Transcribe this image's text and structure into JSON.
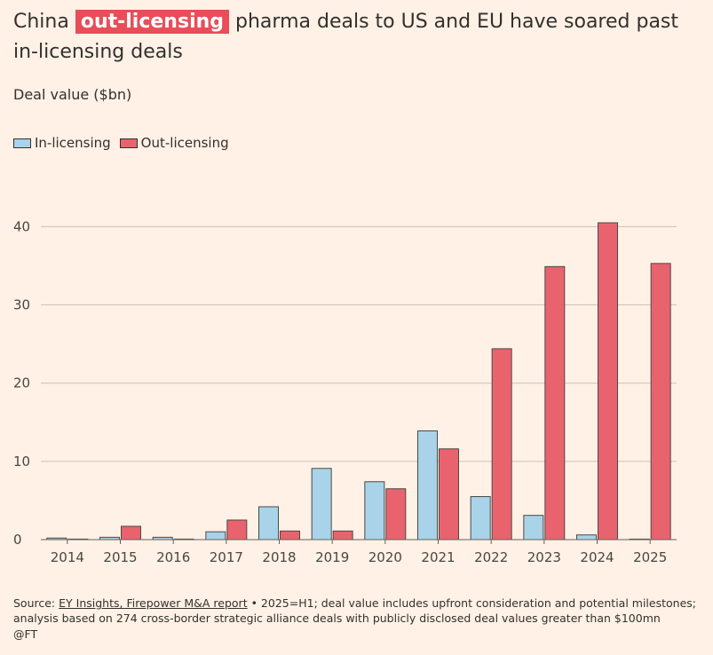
{
  "title": {
    "before": "China ",
    "highlight": "out-licensing",
    "after": " pharma deals to US and EU have soared past in-licensing deals"
  },
  "colors": {
    "in_licensing": "#a8d3e8",
    "out_licensing": "#e9636e",
    "bar_stroke": "#4d4845",
    "grid": "#ccc1b7",
    "axis": "#66605c",
    "highlight": "#e84d59"
  },
  "chart_data": {
    "type": "bar",
    "ylabel": "Deal value ($bn)",
    "categories": [
      "2014",
      "2015",
      "2016",
      "2017",
      "2018",
      "2019",
      "2020",
      "2021",
      "2022",
      "2023",
      "2024",
      "2025"
    ],
    "series": [
      {
        "name": "In-licensing",
        "values": [
          0.2,
          0.3,
          0.3,
          1.0,
          4.2,
          9.1,
          7.4,
          13.9,
          5.5,
          3.1,
          0.6,
          0.0
        ]
      },
      {
        "name": "Out-licensing",
        "values": [
          0.0,
          1.7,
          0.0,
          2.5,
          1.1,
          1.1,
          6.5,
          11.6,
          24.4,
          34.9,
          40.5,
          35.3
        ]
      }
    ],
    "yticks": [
      0,
      10,
      20,
      30,
      40
    ],
    "ylim": [
      0,
      40.5
    ],
    "grid": true
  },
  "source": {
    "prefix": "Source: ",
    "link": "EY Insights, Firepower M&A report",
    "text": " • 2025=H1; deal value includes upfront consideration and potential milestones; analysis based on 274 cross-border strategic alliance deals with publicly disclosed deal values greater than $100mn"
  },
  "credit": "@FT"
}
